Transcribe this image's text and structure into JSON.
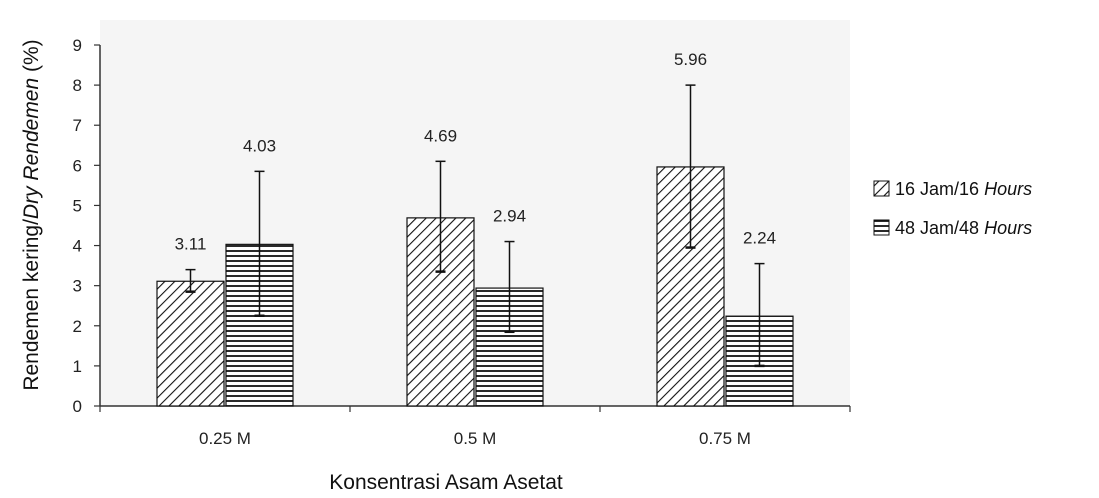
{
  "chart_data": {
    "type": "bar",
    "categories": [
      "0.25 M",
      "0.5 M",
      "0.75 M"
    ],
    "series": [
      {
        "name": "16 Jam/16 Hours",
        "legend_label": "16 Jam/16",
        "legend_unit": "Hours",
        "values": [
          3.11,
          4.69,
          5.96
        ],
        "value_labels": [
          "3.11",
          "4.69",
          "5.96"
        ],
        "error_low": [
          2.85,
          3.35,
          3.95
        ],
        "error_high": [
          3.4,
          6.1,
          8.0
        ],
        "pattern": "diagonal-hatch"
      },
      {
        "name": "48 Jam/48 Hours",
        "legend_label": "48 Jam/48",
        "legend_unit": "Hours",
        "values": [
          4.03,
          2.94,
          2.24
        ],
        "value_labels": [
          "4.03",
          "2.94",
          "2.24"
        ],
        "error_low": [
          2.25,
          1.85,
          1.0
        ],
        "error_high": [
          5.85,
          4.1,
          3.55
        ],
        "pattern": "horizontal-lines"
      }
    ],
    "ylabel_main": "Rendemen kering/",
    "ylabel_italic": "Dry Rendemen",
    "ylabel_suffix": " (%)",
    "xlabel": "Konsentrasi Asam Asetat",
    "ylim": [
      0,
      9
    ],
    "yticks": [
      "0",
      "1",
      "2",
      "3",
      "4",
      "5",
      "6",
      "7",
      "8",
      "9"
    ],
    "grid": false,
    "legend_position": "right",
    "colors": {
      "plot_bg": "#f5f5f5",
      "bar_fill": "#ffffff",
      "ink": "#111111"
    }
  }
}
